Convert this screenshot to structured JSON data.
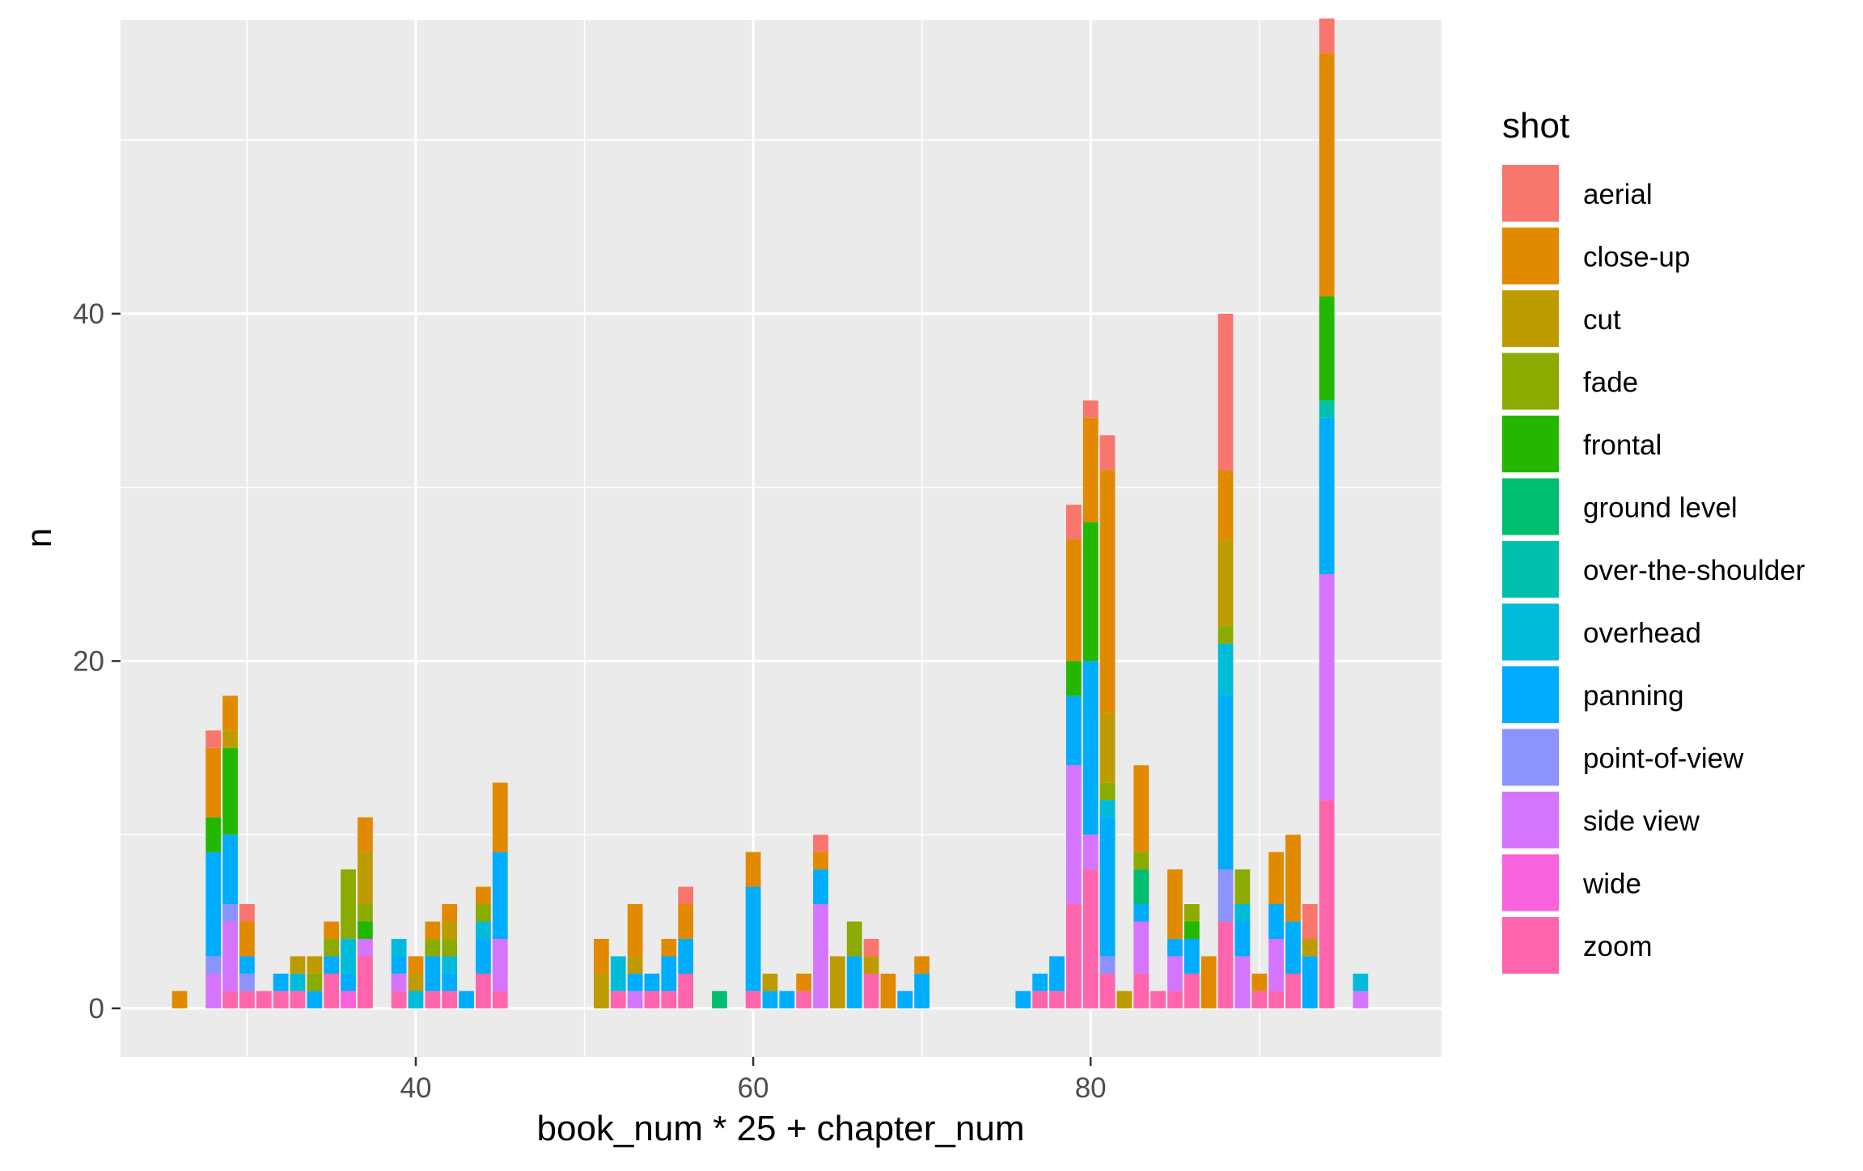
{
  "chart_data": {
    "type": "bar",
    "stacked": true,
    "xlabel": "book_num * 25 + chapter_num",
    "ylabel": "n",
    "xlim": [
      22.5,
      100.8
    ],
    "ylim": [
      -2.8,
      56.9
    ],
    "x_ticks": [
      40,
      60,
      80
    ],
    "x_tick_labels": [
      "40",
      "60",
      "80"
    ],
    "y_ticks": [
      0,
      20,
      40
    ],
    "y_tick_labels": [
      "0",
      "20",
      "40"
    ],
    "grid": true,
    "legend": {
      "title": "shot",
      "position": "right",
      "entries": [
        {
          "name": "aerial",
          "color": "#F8766D"
        },
        {
          "name": "close-up",
          "color": "#E18A00"
        },
        {
          "name": "cut",
          "color": "#BE9C00"
        },
        {
          "name": "fade",
          "color": "#8CAB00"
        },
        {
          "name": "frontal",
          "color": "#24B700"
        },
        {
          "name": "ground level",
          "color": "#00BE70"
        },
        {
          "name": "over-the-shoulder",
          "color": "#00C1AB"
        },
        {
          "name": "overhead",
          "color": "#00BBDA"
        },
        {
          "name": "panning",
          "color": "#00ACFC"
        },
        {
          "name": "point-of-view",
          "color": "#8B93FF"
        },
        {
          "name": "side view",
          "color": "#D575FE"
        },
        {
          "name": "wide",
          "color": "#F962DD"
        },
        {
          "name": "zoom",
          "color": "#FF65AC"
        }
      ]
    },
    "stacks": [
      {
        "x": 26,
        "segments": [
          [
            "close-up",
            1
          ]
        ]
      },
      {
        "x": 28,
        "segments": [
          [
            "side view",
            2
          ],
          [
            "point-of-view",
            1
          ],
          [
            "panning",
            6
          ],
          [
            "frontal",
            2
          ],
          [
            "close-up",
            4
          ],
          [
            "aerial",
            1
          ]
        ]
      },
      {
        "x": 29,
        "segments": [
          [
            "zoom",
            1
          ],
          [
            "side view",
            4
          ],
          [
            "point-of-view",
            1
          ],
          [
            "panning",
            4
          ],
          [
            "frontal",
            5
          ],
          [
            "cut",
            1
          ],
          [
            "close-up",
            2
          ]
        ]
      },
      {
        "x": 30,
        "segments": [
          [
            "zoom",
            1
          ],
          [
            "point-of-view",
            1
          ],
          [
            "panning",
            1
          ],
          [
            "close-up",
            2
          ],
          [
            "aerial",
            1
          ]
        ]
      },
      {
        "x": 31,
        "segments": [
          [
            "zoom",
            1
          ]
        ]
      },
      {
        "x": 32,
        "segments": [
          [
            "zoom",
            1
          ],
          [
            "panning",
            1
          ]
        ]
      },
      {
        "x": 33,
        "segments": [
          [
            "zoom",
            1
          ],
          [
            "overhead",
            1
          ],
          [
            "cut",
            1
          ]
        ]
      },
      {
        "x": 34,
        "segments": [
          [
            "panning",
            1
          ],
          [
            "fade",
            1
          ],
          [
            "cut",
            1
          ]
        ]
      },
      {
        "x": 35,
        "segments": [
          [
            "zoom",
            2
          ],
          [
            "panning",
            1
          ],
          [
            "fade",
            1
          ],
          [
            "close-up",
            1
          ]
        ]
      },
      {
        "x": 36,
        "segments": [
          [
            "wide",
            1
          ],
          [
            "panning",
            1
          ],
          [
            "overhead",
            2
          ],
          [
            "fade",
            4
          ]
        ]
      },
      {
        "x": 37,
        "segments": [
          [
            "zoom",
            3
          ],
          [
            "side view",
            1
          ],
          [
            "frontal",
            1
          ],
          [
            "fade",
            1
          ],
          [
            "cut",
            3
          ],
          [
            "close-up",
            2
          ]
        ]
      },
      {
        "x": 39,
        "segments": [
          [
            "zoom",
            1
          ],
          [
            "side view",
            1
          ],
          [
            "panning",
            1
          ],
          [
            "overhead",
            1
          ]
        ]
      },
      {
        "x": 40,
        "segments": [
          [
            "overhead",
            1
          ],
          [
            "cut",
            1
          ],
          [
            "close-up",
            1
          ]
        ]
      },
      {
        "x": 41,
        "segments": [
          [
            "zoom",
            1
          ],
          [
            "panning",
            2
          ],
          [
            "fade",
            1
          ],
          [
            "close-up",
            1
          ]
        ]
      },
      {
        "x": 42,
        "segments": [
          [
            "zoom",
            1
          ],
          [
            "panning",
            1
          ],
          [
            "overhead",
            1
          ],
          [
            "fade",
            1
          ],
          [
            "cut",
            1
          ],
          [
            "close-up",
            1
          ]
        ]
      },
      {
        "x": 43,
        "segments": [
          [
            "panning",
            1
          ]
        ]
      },
      {
        "x": 44,
        "segments": [
          [
            "zoom",
            2
          ],
          [
            "panning",
            2
          ],
          [
            "overhead",
            1
          ],
          [
            "fade",
            1
          ],
          [
            "close-up",
            1
          ]
        ]
      },
      {
        "x": 45,
        "segments": [
          [
            "zoom",
            1
          ],
          [
            "side view",
            3
          ],
          [
            "panning",
            5
          ],
          [
            "close-up",
            4
          ]
        ]
      },
      {
        "x": 51,
        "segments": [
          [
            "cut",
            2
          ],
          [
            "close-up",
            2
          ]
        ]
      },
      {
        "x": 52,
        "segments": [
          [
            "zoom",
            1
          ],
          [
            "overhead",
            2
          ]
        ]
      },
      {
        "x": 53,
        "segments": [
          [
            "side view",
            1
          ],
          [
            "panning",
            1
          ],
          [
            "cut",
            1
          ],
          [
            "close-up",
            3
          ]
        ]
      },
      {
        "x": 54,
        "segments": [
          [
            "zoom",
            1
          ],
          [
            "panning",
            1
          ]
        ]
      },
      {
        "x": 55,
        "segments": [
          [
            "zoom",
            1
          ],
          [
            "panning",
            2
          ],
          [
            "close-up",
            1
          ]
        ]
      },
      {
        "x": 56,
        "segments": [
          [
            "zoom",
            2
          ],
          [
            "panning",
            2
          ],
          [
            "close-up",
            2
          ],
          [
            "aerial",
            1
          ]
        ]
      },
      {
        "x": 58,
        "segments": [
          [
            "ground level",
            1
          ]
        ]
      },
      {
        "x": 60,
        "segments": [
          [
            "zoom",
            1
          ],
          [
            "panning",
            6
          ],
          [
            "close-up",
            2
          ]
        ]
      },
      {
        "x": 61,
        "segments": [
          [
            "panning",
            1
          ],
          [
            "cut",
            1
          ]
        ]
      },
      {
        "x": 62,
        "segments": [
          [
            "panning",
            1
          ]
        ]
      },
      {
        "x": 63,
        "segments": [
          [
            "zoom",
            1
          ],
          [
            "close-up",
            1
          ]
        ]
      },
      {
        "x": 64,
        "segments": [
          [
            "side view",
            6
          ],
          [
            "panning",
            2
          ],
          [
            "close-up",
            1
          ],
          [
            "aerial",
            1
          ]
        ]
      },
      {
        "x": 65,
        "segments": [
          [
            "cut",
            3
          ]
        ]
      },
      {
        "x": 66,
        "segments": [
          [
            "panning",
            3
          ],
          [
            "fade",
            2
          ]
        ]
      },
      {
        "x": 67,
        "segments": [
          [
            "zoom",
            2
          ],
          [
            "cut",
            1
          ],
          [
            "aerial",
            1
          ]
        ]
      },
      {
        "x": 68,
        "segments": [
          [
            "close-up",
            2
          ]
        ]
      },
      {
        "x": 69,
        "segments": [
          [
            "panning",
            1
          ]
        ]
      },
      {
        "x": 70,
        "segments": [
          [
            "panning",
            2
          ],
          [
            "close-up",
            1
          ]
        ]
      },
      {
        "x": 76,
        "segments": [
          [
            "panning",
            1
          ]
        ]
      },
      {
        "x": 77,
        "segments": [
          [
            "zoom",
            1
          ],
          [
            "panning",
            1
          ]
        ]
      },
      {
        "x": 78,
        "segments": [
          [
            "zoom",
            1
          ],
          [
            "panning",
            2
          ]
        ]
      },
      {
        "x": 79,
        "segments": [
          [
            "zoom",
            6
          ],
          [
            "side view",
            8
          ],
          [
            "panning",
            4
          ],
          [
            "frontal",
            2
          ],
          [
            "close-up",
            7
          ],
          [
            "aerial",
            2
          ]
        ]
      },
      {
        "x": 80,
        "segments": [
          [
            "zoom",
            8
          ],
          [
            "side view",
            2
          ],
          [
            "panning",
            10
          ],
          [
            "frontal",
            8
          ],
          [
            "close-up",
            6
          ],
          [
            "aerial",
            1
          ]
        ]
      },
      {
        "x": 81,
        "segments": [
          [
            "zoom",
            2
          ],
          [
            "point-of-view",
            1
          ],
          [
            "panning",
            8
          ],
          [
            "overhead",
            1
          ],
          [
            "fade",
            1
          ],
          [
            "cut",
            4
          ],
          [
            "close-up",
            14
          ],
          [
            "aerial",
            2
          ]
        ]
      },
      {
        "x": 82,
        "segments": [
          [
            "cut",
            1
          ]
        ]
      },
      {
        "x": 83,
        "segments": [
          [
            "zoom",
            2
          ],
          [
            "side view",
            3
          ],
          [
            "panning",
            1
          ],
          [
            "ground level",
            2
          ],
          [
            "fade",
            1
          ],
          [
            "close-up",
            5
          ]
        ]
      },
      {
        "x": 84,
        "segments": [
          [
            "zoom",
            1
          ]
        ]
      },
      {
        "x": 85,
        "segments": [
          [
            "zoom",
            1
          ],
          [
            "side view",
            2
          ],
          [
            "panning",
            1
          ],
          [
            "close-up",
            4
          ]
        ]
      },
      {
        "x": 86,
        "segments": [
          [
            "zoom",
            2
          ],
          [
            "panning",
            2
          ],
          [
            "frontal",
            1
          ],
          [
            "fade",
            1
          ]
        ]
      },
      {
        "x": 87,
        "segments": [
          [
            "close-up",
            3
          ]
        ]
      },
      {
        "x": 88,
        "segments": [
          [
            "zoom",
            5
          ],
          [
            "point-of-view",
            3
          ],
          [
            "panning",
            10
          ],
          [
            "overhead",
            3
          ],
          [
            "fade",
            1
          ],
          [
            "cut",
            5
          ],
          [
            "close-up",
            4
          ],
          [
            "aerial",
            9
          ]
        ]
      },
      {
        "x": 89,
        "segments": [
          [
            "side view",
            3
          ],
          [
            "panning",
            2
          ],
          [
            "overhead",
            1
          ],
          [
            "fade",
            2
          ]
        ]
      },
      {
        "x": 90,
        "segments": [
          [
            "zoom",
            1
          ],
          [
            "close-up",
            1
          ]
        ]
      },
      {
        "x": 91,
        "segments": [
          [
            "zoom",
            1
          ],
          [
            "side view",
            3
          ],
          [
            "panning",
            2
          ],
          [
            "close-up",
            3
          ]
        ]
      },
      {
        "x": 92,
        "segments": [
          [
            "zoom",
            2
          ],
          [
            "panning",
            3
          ],
          [
            "close-up",
            5
          ]
        ]
      },
      {
        "x": 93,
        "segments": [
          [
            "panning",
            3
          ],
          [
            "cut",
            1
          ],
          [
            "aerial",
            2
          ]
        ]
      },
      {
        "x": 94,
        "segments": [
          [
            "zoom",
            12
          ],
          [
            "side view",
            13
          ],
          [
            "panning",
            9
          ],
          [
            "over-the-shoulder",
            1
          ],
          [
            "frontal",
            6
          ],
          [
            "close-up",
            14
          ],
          [
            "aerial",
            2
          ]
        ]
      },
      {
        "x": 96,
        "segments": [
          [
            "side view",
            1
          ],
          [
            "overhead",
            1
          ]
        ]
      }
    ]
  }
}
